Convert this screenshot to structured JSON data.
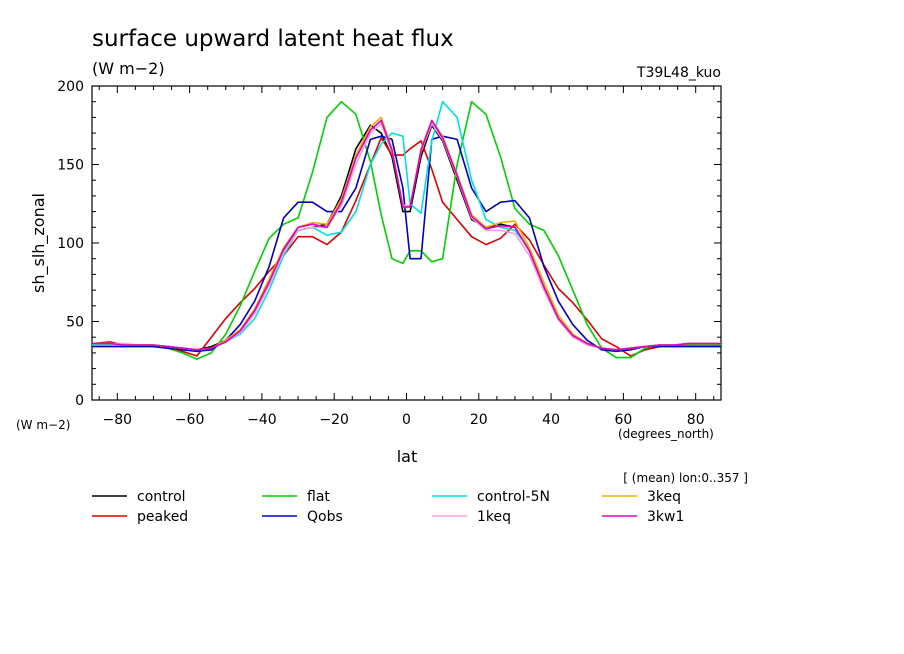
{
  "chart_data": {
    "type": "line",
    "title": "surface upward latent heat flux",
    "units": "(W m−2)",
    "run_label": "T39L48_kuo",
    "ylabel": "sh_slh_zonal",
    "yunits": "(W m−2)",
    "xlabel": "lat",
    "xunits": "(degrees_north)",
    "average_note": "[ (mean) lon:0..357 ]",
    "xlim": [
      -87,
      87
    ],
    "ylim": [
      0,
      200
    ],
    "xticks": [
      -80,
      -60,
      -40,
      -20,
      0,
      20,
      40,
      60,
      80
    ],
    "yticks": [
      0,
      50,
      100,
      150,
      200
    ],
    "x": [
      -87,
      -82,
      -78,
      -74,
      -70,
      -66,
      -62,
      -58,
      -54,
      -50,
      -46,
      -42,
      -38,
      -34,
      -30,
      -26,
      -22,
      -18,
      -14,
      -10,
      -7,
      -4,
      -1,
      1,
      4,
      7,
      10,
      14,
      18,
      22,
      26,
      30,
      34,
      38,
      42,
      46,
      50,
      54,
      58,
      62,
      66,
      70,
      74,
      78,
      82,
      87
    ],
    "series": [
      {
        "name": "control",
        "color": "#000000",
        "values": [
          35,
          35,
          35,
          35,
          35,
          34,
          33,
          32,
          34,
          38,
          44,
          57,
          75,
          95,
          108,
          110,
          112,
          130,
          160,
          175,
          170,
          155,
          120,
          120,
          155,
          175,
          165,
          140,
          115,
          110,
          112,
          110,
          95,
          72,
          52,
          41,
          36,
          33,
          32,
          33,
          34,
          35,
          35,
          36,
          36,
          36
        ]
      },
      {
        "name": "peaked",
        "color": "#e00000",
        "values": [
          36,
          37,
          35,
          35,
          34,
          33,
          31,
          28,
          40,
          52,
          62,
          71,
          82,
          92,
          104,
          104,
          99,
          107,
          127,
          150,
          167,
          156,
          156,
          160,
          165,
          147,
          126,
          115,
          104,
          99,
          103,
          112,
          102,
          86,
          71,
          62,
          51,
          39,
          34,
          28,
          32,
          34,
          35,
          35,
          36,
          36
        ]
      },
      {
        "name": "flat",
        "color": "#00d000",
        "values": [
          35,
          35,
          35,
          35,
          35,
          33,
          30,
          26,
          30,
          42,
          60,
          82,
          103,
          112,
          116,
          145,
          180,
          190,
          182,
          152,
          118,
          90,
          87,
          95,
          95,
          88,
          90,
          150,
          190,
          182,
          155,
          122,
          112,
          108,
          92,
          70,
          48,
          33,
          27,
          27,
          33,
          35,
          35,
          35,
          35,
          35
        ]
      },
      {
        "name": "Qobs",
        "color": "#0000c0",
        "values": [
          34,
          34,
          34,
          34,
          34,
          33,
          32,
          31,
          32,
          38,
          48,
          63,
          85,
          116,
          126,
          126,
          120,
          120,
          135,
          166,
          168,
          166,
          135,
          90,
          90,
          166,
          168,
          166,
          135,
          120,
          126,
          127,
          116,
          85,
          63,
          48,
          38,
          32,
          31,
          32,
          34,
          34,
          34,
          34,
          34,
          34
        ]
      },
      {
        "name": "control-5N",
        "color": "#00e0e0",
        "values": [
          35,
          35,
          35,
          35,
          35,
          34,
          33,
          32,
          33,
          37,
          42,
          52,
          70,
          92,
          108,
          110,
          105,
          107,
          120,
          150,
          163,
          170,
          168,
          125,
          119,
          165,
          190,
          180,
          140,
          115,
          110,
          108,
          96,
          72,
          52,
          41,
          36,
          33,
          32,
          33,
          34,
          35,
          35,
          36,
          36,
          36
        ]
      },
      {
        "name": "1keq",
        "color": "#f0a0e0",
        "values": [
          36,
          36,
          36,
          35,
          35,
          34,
          33,
          32,
          33,
          37,
          43,
          55,
          73,
          94,
          108,
          110,
          110,
          124,
          150,
          170,
          176,
          158,
          124,
          124,
          158,
          176,
          166,
          142,
          116,
          108,
          108,
          106,
          92,
          70,
          51,
          40,
          35,
          33,
          32,
          33,
          34,
          35,
          35,
          36,
          36,
          36
        ]
      },
      {
        "name": "3keq",
        "color": "#f0b000",
        "values": [
          36,
          36,
          35,
          35,
          35,
          34,
          33,
          32,
          33,
          38,
          45,
          58,
          77,
          97,
          110,
          113,
          112,
          128,
          156,
          174,
          180,
          160,
          123,
          123,
          160,
          178,
          168,
          144,
          118,
          110,
          113,
          114,
          97,
          75,
          54,
          42,
          36,
          33,
          32,
          33,
          34,
          35,
          35,
          36,
          36,
          36
        ]
      },
      {
        "name": "3kw1",
        "color": "#e000c0",
        "values": [
          36,
          36,
          35,
          35,
          35,
          34,
          33,
          32,
          33,
          37,
          44,
          57,
          75,
          96,
          110,
          112,
          110,
          126,
          154,
          172,
          178,
          159,
          123,
          123,
          159,
          178,
          167,
          143,
          117,
          109,
          111,
          110,
          95,
          72,
          52,
          41,
          36,
          33,
          32,
          33,
          34,
          35,
          35,
          36,
          36,
          36
        ]
      }
    ]
  }
}
